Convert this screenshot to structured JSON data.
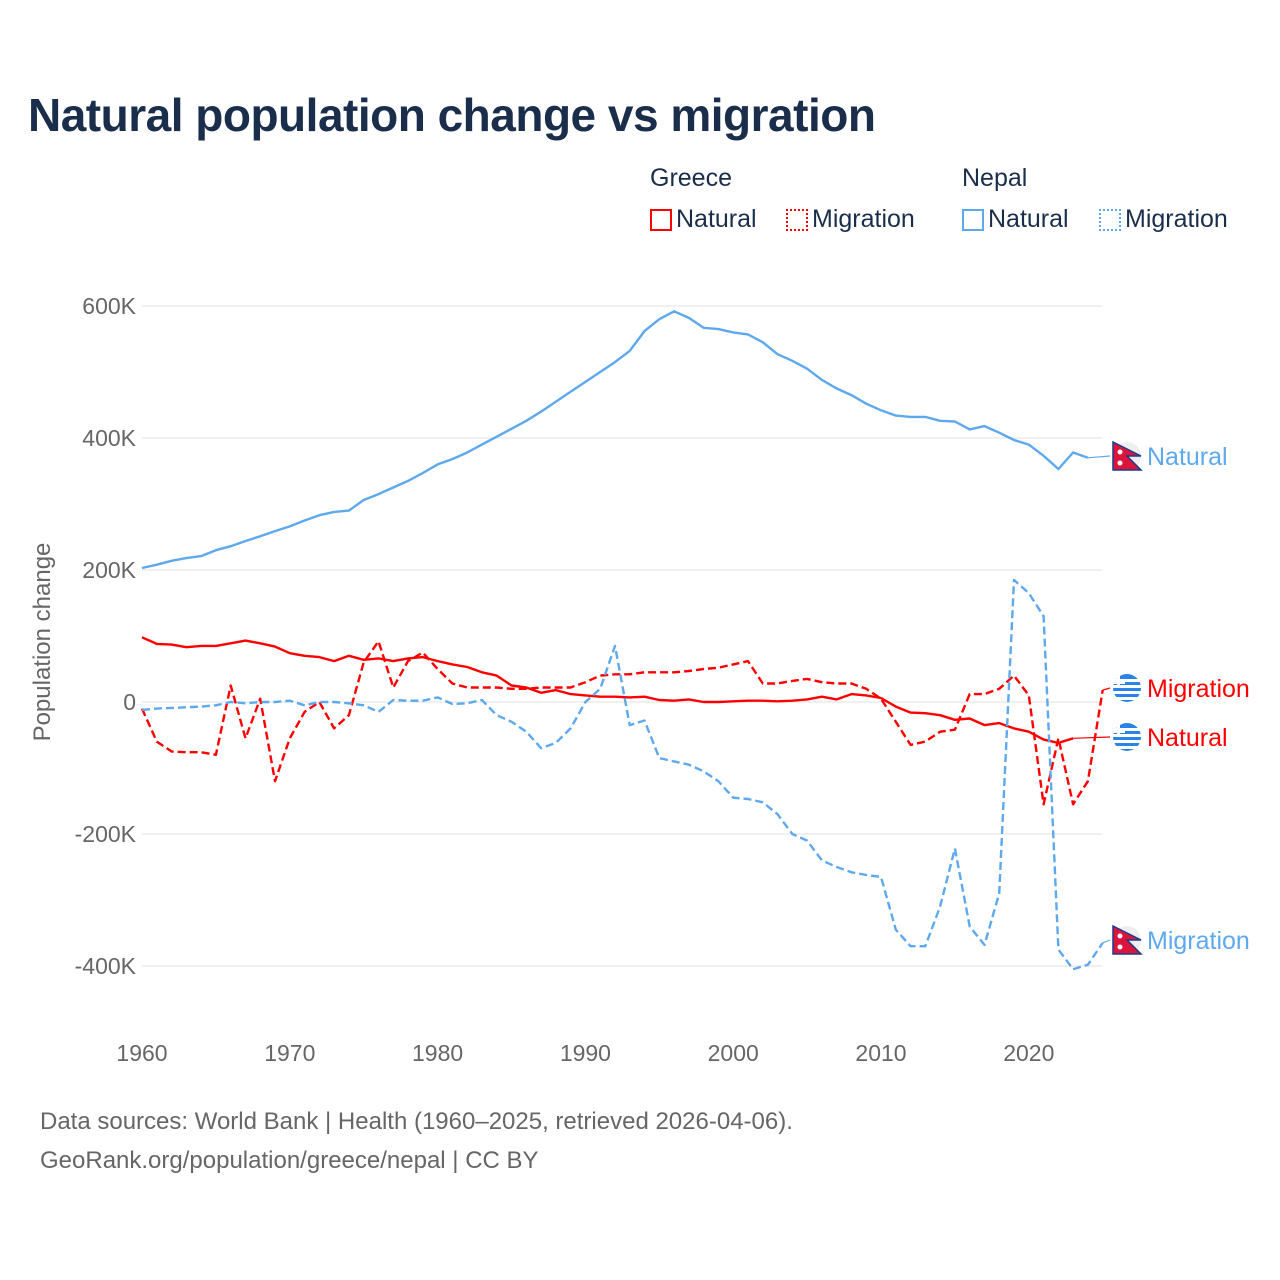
{
  "title": "Natural population change vs migration",
  "legend": {
    "groups": [
      {
        "name": "Greece",
        "items": [
          {
            "label": "Natural",
            "style": "solid",
            "color": "#ff0000"
          },
          {
            "label": "Migration",
            "style": "dotted",
            "color": "#ff0000"
          }
        ]
      },
      {
        "name": "Nepal",
        "items": [
          {
            "label": "Natural",
            "style": "solid",
            "color": "#5ea8ee"
          },
          {
            "label": "Migration",
            "style": "dotted",
            "color": "#5ea8ee"
          }
        ]
      }
    ]
  },
  "source": {
    "line1": "Data sources: World Bank | Health (1960–2025, retrieved 2026-04-06).",
    "line2": "GeoRank.org/population/greece/nepal | CC BY"
  },
  "chart_data": {
    "type": "line",
    "title": "Natural population change vs migration",
    "xlabel": "",
    "ylabel": "Population change",
    "xlim": [
      1960,
      2025
    ],
    "ylim": [
      -500000,
      650000
    ],
    "x_ticks": [
      1960,
      1970,
      1980,
      1990,
      2000,
      2010,
      2020
    ],
    "x_tick_labels": [
      "1960",
      "1970",
      "1980",
      "1990",
      "2000",
      "2010",
      "2020"
    ],
    "y_ticks": [
      600000,
      400000,
      200000,
      0,
      -200000,
      -400000
    ],
    "y_tick_labels": [
      "600K",
      "400K",
      "200K",
      "0",
      "-200K",
      "-400K"
    ],
    "grid": true,
    "x_start": 1960,
    "unit": "thousands",
    "series": [
      {
        "name": "Greece Natural",
        "end_label": "Natural",
        "color": "#ff0000",
        "dash": false,
        "flag": "greece",
        "values": [
          98,
          88,
          87,
          83,
          85,
          85,
          89,
          93,
          89,
          84,
          74,
          70,
          68,
          62,
          70,
          64,
          66,
          62,
          66,
          68,
          62,
          57,
          53,
          45,
          40,
          25,
          22,
          14,
          18,
          12,
          10,
          8,
          8,
          7,
          8,
          3,
          2,
          4,
          0,
          0,
          1,
          2,
          2,
          1,
          2,
          4,
          8,
          4,
          12,
          10,
          6,
          -7,
          -16,
          -17,
          -20,
          -27,
          -25,
          -35,
          -32,
          -40,
          -45,
          -57,
          -62,
          -55
        ]
      },
      {
        "name": "Greece Migration",
        "end_label": "Migration",
        "color": "#ff0000",
        "dash": true,
        "flag": "greece",
        "values": [
          -10,
          -60,
          -75,
          -76,
          -76,
          -80,
          25,
          -55,
          5,
          -120,
          -55,
          -15,
          0,
          -40,
          -20,
          60,
          92,
          22,
          62,
          75,
          50,
          28,
          22,
          22,
          22,
          20,
          20,
          22,
          22,
          22,
          30,
          40,
          42,
          42,
          45,
          45,
          45,
          47,
          50,
          52,
          57,
          62,
          28,
          28,
          32,
          35,
          30,
          28,
          28,
          20,
          5,
          -30,
          -65,
          -60,
          -45,
          -42,
          12,
          12,
          20,
          40,
          10,
          -155,
          -55,
          -155,
          -120,
          18
        ]
      },
      {
        "name": "Nepal Natural",
        "end_label": "Natural",
        "color": "#5ea8ee",
        "dash": false,
        "flag": "nepal",
        "values": [
          203,
          208,
          214,
          218,
          221,
          230,
          236,
          244,
          251,
          259,
          266,
          275,
          283,
          288,
          290,
          306,
          315,
          325,
          335,
          347,
          360,
          368,
          378,
          390,
          402,
          414,
          426,
          440,
          455,
          470,
          485,
          500,
          515,
          532,
          562,
          580,
          592,
          582,
          567,
          565,
          560,
          557,
          545,
          527,
          517,
          505,
          488,
          475,
          465,
          452,
          442,
          434,
          432,
          432,
          426,
          425,
          413,
          418,
          408,
          397,
          390,
          373,
          353,
          378,
          370
        ]
      },
      {
        "name": "Nepal Migration",
        "end_label": "Migration",
        "color": "#5ea8ee",
        "dash": true,
        "flag": "nepal",
        "values": [
          -12,
          -10,
          -9,
          -8,
          -7,
          -5,
          0,
          -2,
          0,
          0,
          2,
          -5,
          0,
          0,
          -2,
          -5,
          -15,
          3,
          2,
          2,
          7,
          -3,
          -2,
          3,
          -20,
          -30,
          -45,
          -70,
          -62,
          -40,
          0,
          20,
          85,
          -35,
          -28,
          -85,
          -90,
          -95,
          -105,
          -120,
          -145,
          -147,
          -152,
          -170,
          -200,
          -210,
          -240,
          -250,
          -258,
          -262,
          -265,
          -345,
          -370,
          -370,
          -310,
          -222,
          -340,
          -368,
          -290,
          185,
          165,
          130,
          -375,
          -405,
          -398,
          -365
        ]
      }
    ]
  }
}
